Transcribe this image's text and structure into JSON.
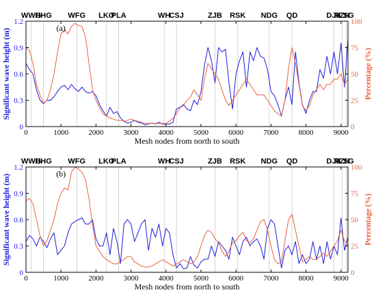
{
  "figure": {
    "left_color": "#1a1adb",
    "right_color": "#e8603c",
    "station_guide_color": "#c8c8c8"
  },
  "chart_data": [
    {
      "type": "line",
      "panel_label": "(a)",
      "xlabel": "Mesh nodes from north to south",
      "ylabel_left": "Significant wave height (m)",
      "ylabel_right": "Percentage (%)",
      "xlim": [
        0,
        9200
      ],
      "ylim_left": [
        0,
        1.2
      ],
      "ylim_right": [
        0,
        100
      ],
      "xticks": [
        0,
        1000,
        2000,
        3000,
        4000,
        5000,
        6000,
        7000,
        8000,
        9000
      ],
      "yticks_left": [
        0,
        0.3,
        0.6,
        0.9,
        1.2
      ],
      "yticks_left_labels": [
        "0",
        "0.3",
        "0.6",
        "0.9",
        "1.2"
      ],
      "yticks_right": [
        0,
        25,
        50,
        75,
        100
      ],
      "grid": "vertical lines at stations",
      "stations": [
        {
          "name": "WWG",
          "x": 150
        },
        {
          "name": "HHG",
          "x": 500
        },
        {
          "name": "WFG",
          "x": 1450
        },
        {
          "name": "LKO",
          "x": 2300
        },
        {
          "name": "PLA",
          "x": 2650
        },
        {
          "name": "WH",
          "x": 3950
        },
        {
          "name": "CSJ",
          "x": 4300
        },
        {
          "name": "ZJB",
          "x": 5400
        },
        {
          "name": "RSK",
          "x": 6050
        },
        {
          "name": "NDG",
          "x": 6950
        },
        {
          "name": "QD",
          "x": 7600
        },
        {
          "name": "DJK",
          "x": 8800
        },
        {
          "name": "RZH",
          "x": 9030
        },
        {
          "name": "LSG",
          "x": 9150
        }
      ],
      "series": [
        {
          "axis": "left",
          "color": "#1a1adb",
          "x": [
            0,
            100,
            200,
            300,
            400,
            500,
            600,
            700,
            800,
            900,
            1000,
            1100,
            1200,
            1300,
            1400,
            1500,
            1600,
            1700,
            1800,
            1900,
            2000,
            2100,
            2200,
            2300,
            2400,
            2500,
            2600,
            2700,
            2800,
            2900,
            3000,
            3100,
            3200,
            3300,
            3400,
            3500,
            3600,
            3700,
            3800,
            3900,
            4000,
            4100,
            4200,
            4300,
            4400,
            4500,
            4600,
            4700,
            4800,
            4900,
            5000,
            5100,
            5200,
            5300,
            5400,
            5500,
            5600,
            5700,
            5800,
            5900,
            6000,
            6100,
            6200,
            6300,
            6400,
            6500,
            6600,
            6700,
            6800,
            6900,
            7000,
            7100,
            7200,
            7300,
            7400,
            7500,
            7600,
            7700,
            7800,
            7900,
            8000,
            8100,
            8200,
            8300,
            8400,
            8500,
            8600,
            8700,
            8800,
            8900,
            9000,
            9100,
            9200
          ],
          "values": [
            0.72,
            0.65,
            0.6,
            0.42,
            0.3,
            0.26,
            0.3,
            0.3,
            0.34,
            0.4,
            0.45,
            0.47,
            0.42,
            0.48,
            0.43,
            0.4,
            0.45,
            0.4,
            0.38,
            0.4,
            0.35,
            0.25,
            0.18,
            0.12,
            0.22,
            0.15,
            0.17,
            0.1,
            0.06,
            0.04,
            0.05,
            0.07,
            0.05,
            0.04,
            0.02,
            0.03,
            0.04,
            0.03,
            0.05,
            0.03,
            0.03,
            0.03,
            0.05,
            0.2,
            0.22,
            0.25,
            0.2,
            0.18,
            0.3,
            0.25,
            0.4,
            0.7,
            0.9,
            0.75,
            0.5,
            0.9,
            0.85,
            0.88,
            0.5,
            0.2,
            0.6,
            0.75,
            0.85,
            0.45,
            0.85,
            0.75,
            0.9,
            0.8,
            0.78,
            0.65,
            0.4,
            0.35,
            0.25,
            0.12,
            0.3,
            0.45,
            0.25,
            0.85,
            0.5,
            0.25,
            0.15,
            0.3,
            0.4,
            0.4,
            0.65,
            0.55,
            0.8,
            0.6,
            0.85,
            0.6,
            0.95,
            0.45,
            1.0
          ]
        },
        {
          "axis": "right",
          "color": "#e8603c",
          "x": [
            0,
            100,
            200,
            300,
            400,
            500,
            600,
            700,
            800,
            900,
            1000,
            1100,
            1200,
            1300,
            1400,
            1500,
            1600,
            1700,
            1800,
            1900,
            2000,
            2100,
            2200,
            2300,
            2400,
            2500,
            2600,
            2700,
            2800,
            2900,
            3000,
            3100,
            3200,
            3300,
            3400,
            3500,
            3600,
            3700,
            3800,
            3900,
            4000,
            4100,
            4200,
            4300,
            4400,
            4500,
            4600,
            4700,
            4800,
            4900,
            5000,
            5100,
            5200,
            5300,
            5400,
            5500,
            5600,
            5700,
            5800,
            5900,
            6000,
            6100,
            6200,
            6300,
            6400,
            6500,
            6600,
            6700,
            6800,
            6900,
            7000,
            7100,
            7200,
            7300,
            7400,
            7500,
            7600,
            7700,
            7800,
            7900,
            8000,
            8100,
            8200,
            8300,
            8400,
            8500,
            8600,
            8700,
            8800,
            8900,
            9000,
            9100,
            9200
          ],
          "values": [
            75,
            72,
            60,
            40,
            30,
            22,
            25,
            35,
            50,
            70,
            88,
            92,
            88,
            95,
            98,
            96,
            95,
            85,
            60,
            35,
            25,
            18,
            12,
            10,
            8,
            7,
            6,
            6,
            5,
            6,
            7,
            6,
            5,
            4,
            3,
            3,
            3,
            3,
            3,
            3,
            3,
            5,
            8,
            12,
            18,
            20,
            25,
            28,
            35,
            30,
            25,
            45,
            60,
            55,
            50,
            45,
            35,
            25,
            20,
            25,
            30,
            35,
            40,
            45,
            40,
            35,
            30,
            30,
            30,
            25,
            20,
            15,
            12,
            10,
            25,
            55,
            75,
            60,
            40,
            20,
            15,
            20,
            30,
            35,
            40,
            35,
            40,
            40,
            45,
            45,
            50,
            40,
            45
          ]
        }
      ]
    },
    {
      "type": "line",
      "panel_label": "(b)",
      "xlabel": "Mesh nodes from north to south",
      "ylabel_left": "Significant wave height (m)",
      "ylabel_right": "Percentage (%)",
      "xlim": [
        0,
        9200
      ],
      "ylim_left": [
        0,
        1.2
      ],
      "ylim_right": [
        0,
        100
      ],
      "xticks": [
        0,
        1000,
        2000,
        3000,
        4000,
        5000,
        6000,
        7000,
        8000,
        9000
      ],
      "yticks_left": [
        0,
        0.3,
        0.6,
        0.9,
        1.2
      ],
      "yticks_left_labels": [
        "0",
        "0.3",
        "0.6",
        "0.9",
        "1.2"
      ],
      "yticks_right": [
        0,
        25,
        50,
        75,
        100
      ],
      "grid": "vertical lines at stations",
      "stations": [
        {
          "name": "WWG",
          "x": 150
        },
        {
          "name": "HHG",
          "x": 500
        },
        {
          "name": "WFG",
          "x": 1450
        },
        {
          "name": "LKO",
          "x": 2300
        },
        {
          "name": "PLA",
          "x": 2650
        },
        {
          "name": "WH",
          "x": 3950
        },
        {
          "name": "CSJ",
          "x": 4300
        },
        {
          "name": "ZJB",
          "x": 5400
        },
        {
          "name": "RSK",
          "x": 6050
        },
        {
          "name": "NDG",
          "x": 6950
        },
        {
          "name": "QD",
          "x": 7600
        },
        {
          "name": "DJK",
          "x": 8800
        },
        {
          "name": "RZH",
          "x": 9030
        },
        {
          "name": "LSG",
          "x": 9150
        }
      ],
      "series": [
        {
          "axis": "left",
          "color": "#1a1adb",
          "x": [
            0,
            100,
            200,
            300,
            400,
            500,
            600,
            700,
            800,
            900,
            1000,
            1100,
            1200,
            1300,
            1400,
            1500,
            1600,
            1700,
            1800,
            1900,
            2000,
            2100,
            2200,
            2300,
            2400,
            2500,
            2600,
            2700,
            2800,
            2900,
            3000,
            3100,
            3200,
            3300,
            3400,
            3500,
            3600,
            3700,
            3800,
            3900,
            4000,
            4100,
            4200,
            4300,
            4400,
            4500,
            4600,
            4700,
            4800,
            4900,
            5000,
            5100,
            5200,
            5300,
            5400,
            5500,
            5600,
            5700,
            5800,
            5900,
            6000,
            6100,
            6200,
            6300,
            6400,
            6500,
            6600,
            6700,
            6800,
            6900,
            7000,
            7100,
            7200,
            7300,
            7400,
            7500,
            7600,
            7700,
            7800,
            7900,
            8000,
            8100,
            8200,
            8300,
            8400,
            8500,
            8600,
            8700,
            8800,
            8900,
            9000,
            9100,
            9200
          ],
          "values": [
            0.35,
            0.42,
            0.38,
            0.3,
            0.4,
            0.35,
            0.28,
            0.38,
            0.45,
            0.2,
            0.25,
            0.3,
            0.45,
            0.55,
            0.58,
            0.6,
            0.62,
            0.55,
            0.55,
            0.6,
            0.38,
            0.3,
            0.3,
            0.45,
            0.2,
            0.5,
            0.35,
            0.1,
            0.55,
            0.6,
            0.55,
            0.35,
            0.45,
            0.55,
            0.6,
            0.25,
            0.5,
            0.4,
            0.55,
            0.3,
            0.5,
            0.45,
            0.2,
            0.05,
            0.1,
            0.04,
            0.05,
            0.18,
            0.08,
            0.05,
            0.12,
            0.15,
            0.15,
            0.3,
            0.18,
            0.35,
            0.3,
            0.25,
            0.15,
            0.4,
            0.3,
            0.2,
            0.35,
            0.4,
            0.3,
            0.35,
            0.38,
            0.3,
            0.15,
            0.5,
            0.6,
            0.55,
            0.3,
            0.05,
            0.25,
            0.3,
            0.2,
            0.35,
            0.1,
            0.2,
            0.1,
            0.15,
            0.35,
            0.15,
            0.3,
            0.1,
            0.35,
            0.15,
            0.3,
            0.2,
            0.62,
            0.25,
            0.4
          ]
        },
        {
          "axis": "right",
          "color": "#e8603c",
          "x": [
            0,
            100,
            200,
            300,
            400,
            500,
            600,
            700,
            800,
            900,
            1000,
            1100,
            1200,
            1300,
            1400,
            1500,
            1600,
            1700,
            1800,
            1900,
            2000,
            2100,
            2200,
            2300,
            2400,
            2500,
            2600,
            2700,
            2800,
            2900,
            3000,
            3100,
            3200,
            3300,
            3400,
            3500,
            3600,
            3700,
            3800,
            3900,
            4000,
            4100,
            4200,
            4300,
            4400,
            4500,
            4600,
            4700,
            4800,
            4900,
            5000,
            5100,
            5200,
            5300,
            5400,
            5500,
            5600,
            5700,
            5800,
            5900,
            6000,
            6100,
            6200,
            6300,
            6400,
            6500,
            6600,
            6700,
            6800,
            6900,
            7000,
            7100,
            7200,
            7300,
            7400,
            7500,
            7600,
            7700,
            7800,
            7900,
            8000,
            8100,
            8200,
            8300,
            8400,
            8500,
            8600,
            8700,
            8800,
            8900,
            9000,
            9100,
            9200
          ],
          "values": [
            68,
            70,
            65,
            50,
            35,
            25,
            30,
            40,
            50,
            65,
            75,
            80,
            78,
            95,
            100,
            98,
            95,
            88,
            70,
            45,
            25,
            20,
            15,
            12,
            10,
            8,
            8,
            10,
            12,
            15,
            15,
            10,
            8,
            6,
            5,
            5,
            6,
            8,
            10,
            12,
            10,
            8,
            6,
            8,
            10,
            12,
            10,
            8,
            10,
            15,
            25,
            35,
            40,
            38,
            32,
            28,
            20,
            15,
            20,
            28,
            30,
            35,
            38,
            30,
            28,
            32,
            40,
            48,
            50,
            40,
            25,
            12,
            8,
            10,
            30,
            50,
            55,
            40,
            25,
            10,
            12,
            15,
            12,
            12,
            15,
            18,
            15,
            20,
            25,
            30,
            40,
            30,
            25
          ]
        }
      ]
    }
  ]
}
